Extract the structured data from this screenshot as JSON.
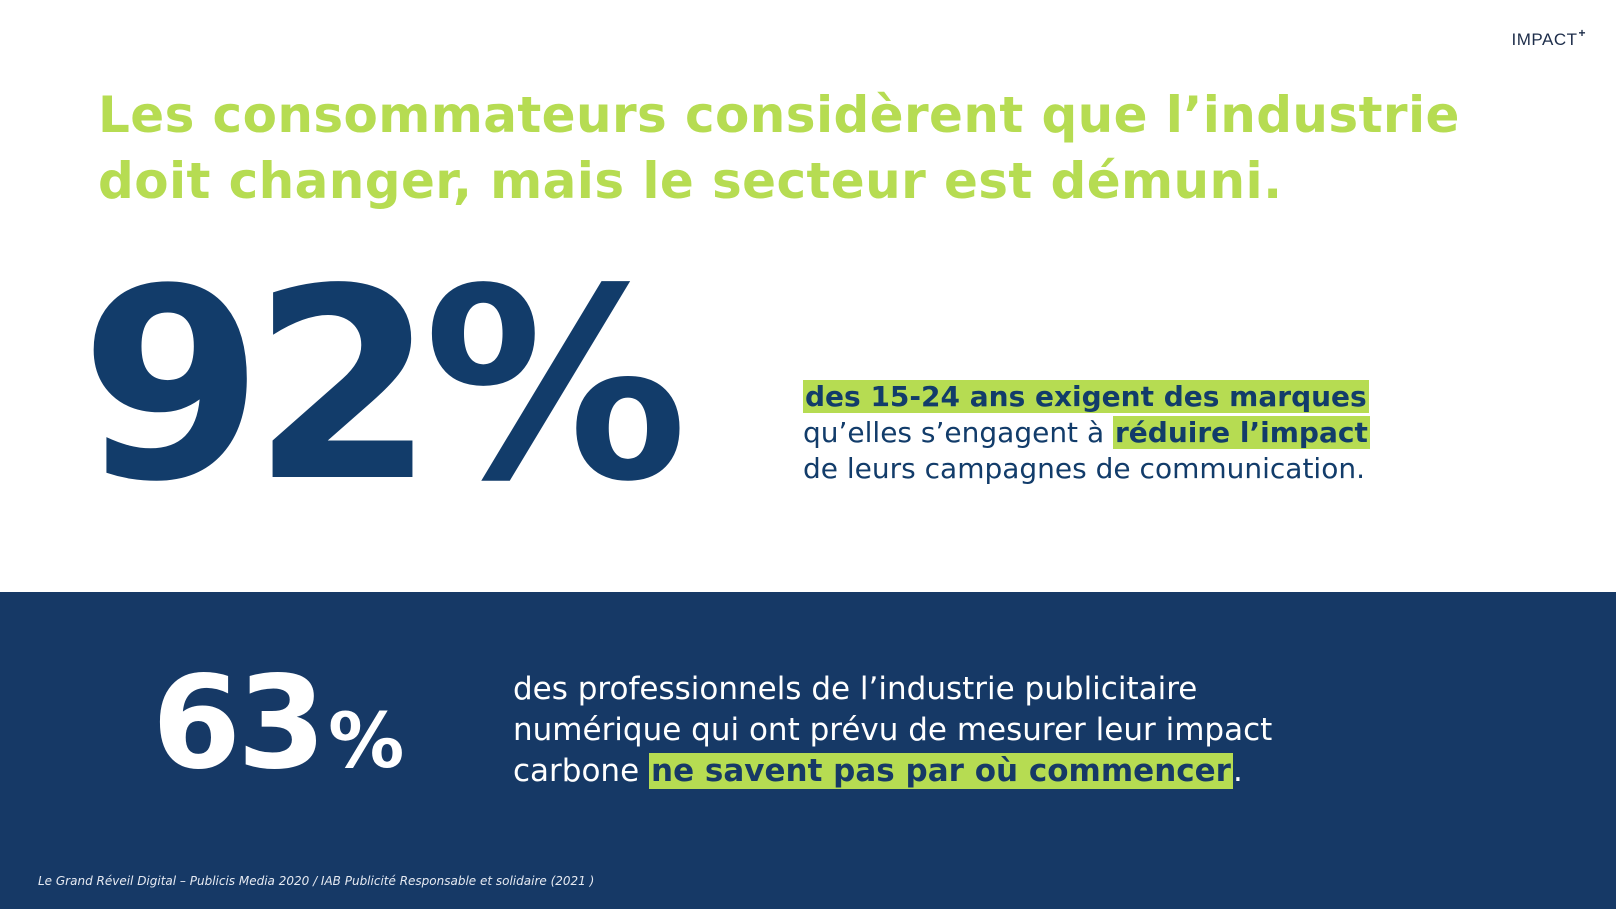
{
  "brand": {
    "name": "IMPACT",
    "superscript": "+"
  },
  "title": {
    "line1": "Les consommateurs considèrent que l’industrie",
    "line2": "doit changer, mais le secteur est démuni."
  },
  "stat1": {
    "value": "92%",
    "highlight1": "des 15-24 ans exigent des marques",
    "text2": "qu’elles s’engagent à ",
    "highlight2": "réduire l’impact",
    "text3": "de leurs campagnes de communication."
  },
  "stat2": {
    "number": "63",
    "percent": "%",
    "line1": "des professionnels de l’industrie publicitaire",
    "line2": "numérique qui ont prévu de mesurer leur impact",
    "line3_pre": "carbone ",
    "highlight": "ne savent pas par où commencer",
    "line3_post": "."
  },
  "source": "Le Grand Réveil Digital – Publicis Media 2020 / IAB Publicité Responsable et solidaire (2021 )",
  "colors": {
    "accent_green": "#b6dc52",
    "navy": "#123c6a",
    "band_navy": "#163966",
    "white": "#ffffff"
  }
}
